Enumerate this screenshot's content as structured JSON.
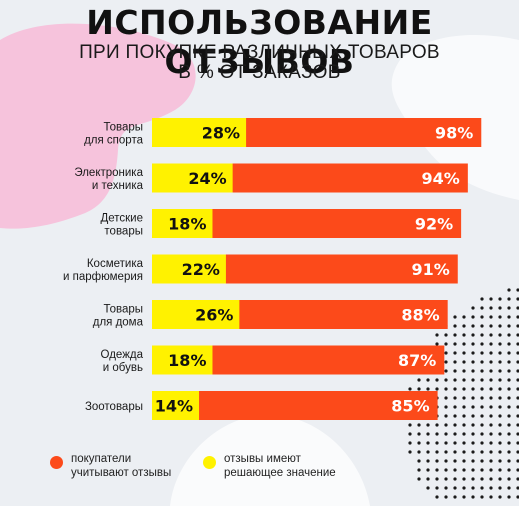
{
  "header": {
    "title": "ИСПОЛЬЗОВАНИЕ ОТЗЫВОВ",
    "subtitle_line1": "ПРИ ПОКУПКЕ РАЗЛИЧНЫХ ТОВАРОВ",
    "subtitle_line2": "В % ОТ ЗАКАЗОВ"
  },
  "colors": {
    "buyers": "#fc4a1a",
    "decisive": "#fff200",
    "background": "#eceff3",
    "pink": "#f6c3dc"
  },
  "chart_data": {
    "type": "bar",
    "orientation": "horizontal",
    "stacked": "overlay",
    "categories": [
      "Товары\nдля спорта",
      "Электроника\nи техника",
      "Детские\nтовары",
      "Косметика\nи парфюмерия",
      "Товары\nдля дома",
      "Одежда\nи обувь",
      "Зоотовары"
    ],
    "series": [
      {
        "name": "покупатели учитывают отзывы",
        "values": [
          98,
          94,
          92,
          91,
          88,
          87,
          85
        ],
        "color": "#fc4a1a"
      },
      {
        "name": "отзывы имеют решающее значение",
        "values": [
          28,
          24,
          18,
          22,
          26,
          18,
          14
        ],
        "color": "#fff200"
      }
    ],
    "value_suffix": "%",
    "xlim": [
      0,
      100
    ],
    "grid": false
  },
  "legend": {
    "items": [
      {
        "label": "покупатели\nучитывают отзывы",
        "color": "#fc4a1a"
      },
      {
        "label": "отзывы имеют\nрешающее значение",
        "color": "#fff200"
      }
    ]
  }
}
